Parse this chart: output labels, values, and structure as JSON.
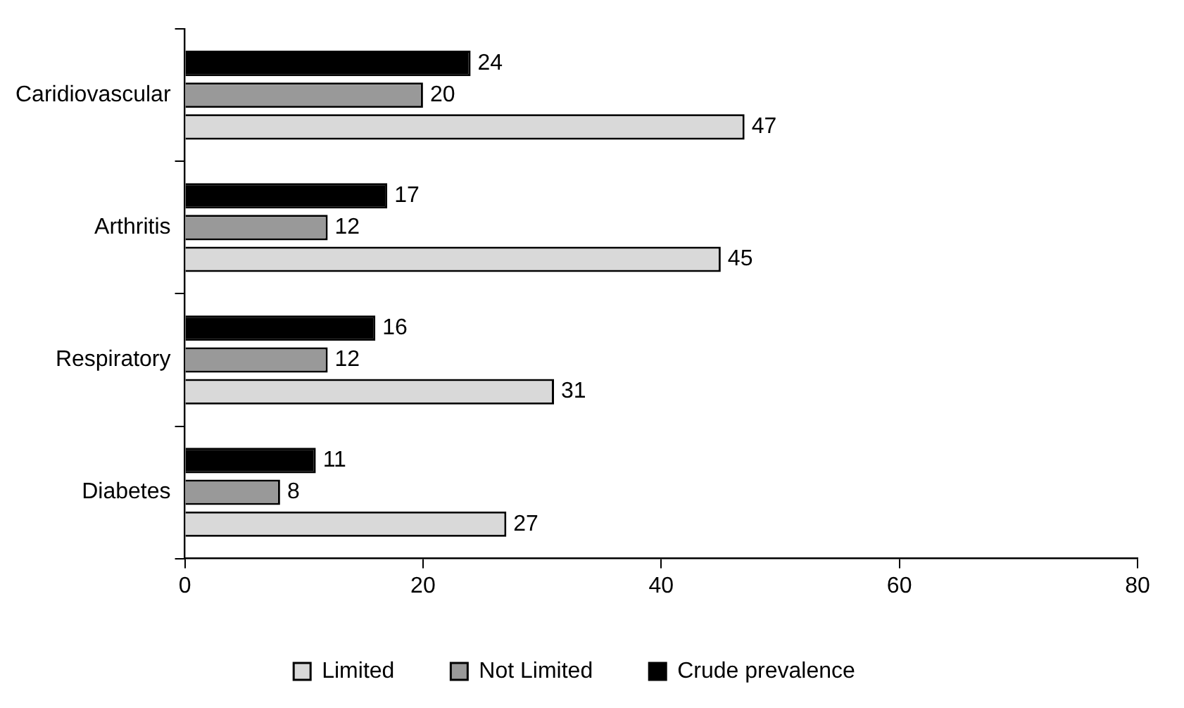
{
  "chart_data": {
    "type": "bar",
    "orientation": "horizontal",
    "categories": [
      "Caridiovascular",
      "Arthritis",
      "Respiratory",
      "Diabetes"
    ],
    "series": [
      {
        "name": "Limited",
        "color": "#d9d9d9",
        "values": [
          47,
          45,
          31,
          27
        ]
      },
      {
        "name": "Not Limited",
        "color": "#999999",
        "values": [
          20,
          12,
          12,
          8
        ]
      },
      {
        "name": "Crude prevalence",
        "color": "#000000",
        "values": [
          24,
          17,
          16,
          11
        ]
      }
    ],
    "xlim": [
      0,
      80
    ],
    "xticks": [
      0,
      20,
      40,
      60,
      80
    ],
    "grid": false,
    "legend": "bottom",
    "data_labels": true
  }
}
